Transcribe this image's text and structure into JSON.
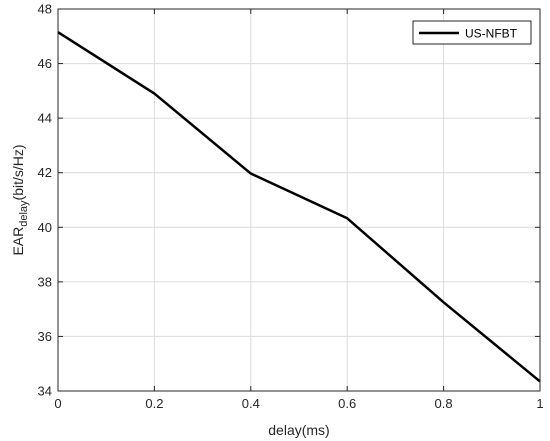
{
  "chart_data": {
    "type": "line",
    "title": "",
    "xlabel": "delay(ms)",
    "ylabel": {
      "main": "EAR",
      "subscript": "delay",
      "unit": "(bit/s/Hz)"
    },
    "xlim": [
      0,
      1
    ],
    "ylim": [
      34,
      48
    ],
    "xticks": [
      0,
      0.2,
      0.4,
      0.6,
      0.8,
      1
    ],
    "yticks": [
      34,
      36,
      38,
      40,
      42,
      44,
      46,
      48
    ],
    "xtick_labels": [
      "0",
      "0.2",
      "0.4",
      "0.6",
      "0.8",
      "1"
    ],
    "ytick_labels": [
      "34",
      "36",
      "38",
      "40",
      "42",
      "44",
      "46",
      "48"
    ],
    "grid": true,
    "legend_position": "top-right",
    "series": [
      {
        "name": "US-NFBT",
        "color": "#000000",
        "x": [
          0,
          0.2,
          0.4,
          0.6,
          0.8,
          1
        ],
        "y": [
          47.15,
          44.9,
          41.97,
          40.33,
          37.25,
          34.35
        ]
      }
    ]
  }
}
